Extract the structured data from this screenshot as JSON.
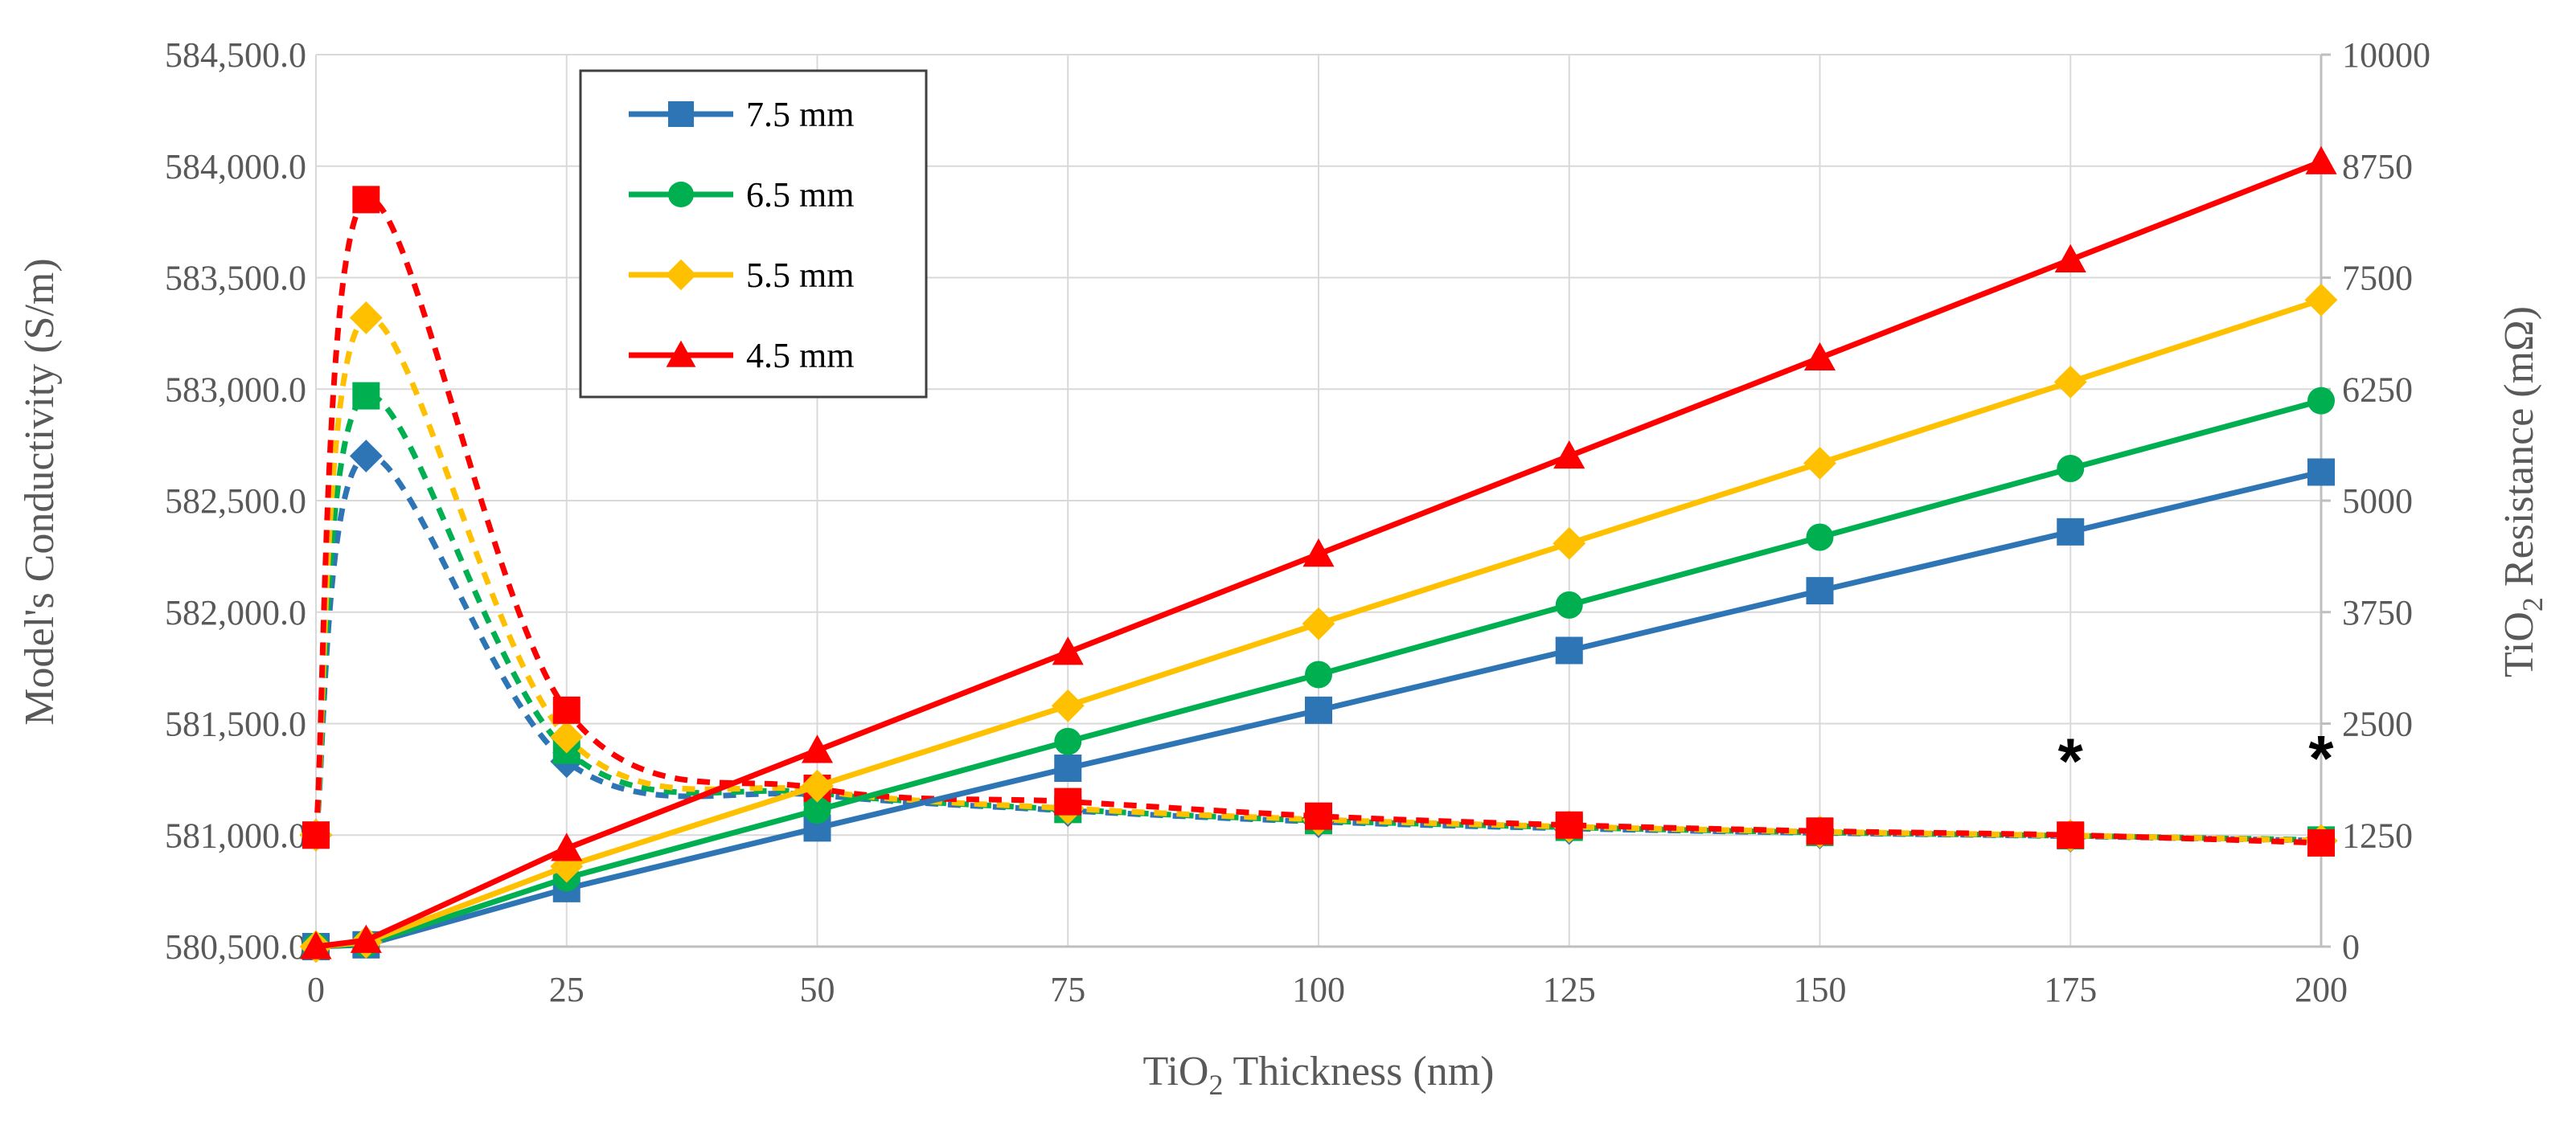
{
  "chart_data": {
    "type": "line",
    "xlabel": "TiO2 Thickness (nm)",
    "ylabel_left": "Model's Conductivity (S/m)",
    "ylabel_right": "TiO2 Resistance (mΩ)",
    "x_ticks": [
      "0",
      "25",
      "50",
      "75",
      "100",
      "125",
      "150",
      "175",
      "200"
    ],
    "y_left_ticks": [
      "580,500.0",
      "581,000.0",
      "581,500.0",
      "582,000.0",
      "582,500.0",
      "583,000.0",
      "583,500.0",
      "584,000.0",
      "584,500.0"
    ],
    "y_right_ticks": [
      "0",
      "1250",
      "2500",
      "3750",
      "5000",
      "6250",
      "7500",
      "8750",
      "10000"
    ],
    "xlim": [
      0,
      200
    ],
    "ylim_left": [
      580500,
      584500
    ],
    "ylim_right": [
      0,
      10000
    ],
    "grid": true,
    "legend_position": "top-left",
    "legend": [
      "7.5 mm",
      "6.5 mm",
      "5.5 mm",
      "4.5 mm"
    ],
    "conductivity_series_right_axis": [
      {
        "name": "7.5 mm",
        "color": "#2E75B6",
        "marker": "diamond",
        "x": [
          0,
          5,
          25,
          50,
          75,
          100,
          125,
          150,
          175,
          200
        ],
        "values": [
          581000,
          582700,
          581330,
          581180,
          581110,
          581060,
          581030,
          581010,
          580995,
          580975
        ]
      },
      {
        "name": "6.5 mm",
        "color": "#00B050",
        "marker": "square",
        "x": [
          0,
          5,
          25,
          50,
          75,
          100,
          125,
          150,
          175,
          200
        ],
        "values": [
          581000,
          582970,
          581380,
          581190,
          581115,
          581065,
          581035,
          581012,
          580997,
          580978
        ]
      },
      {
        "name": "5.5 mm",
        "color": "#FFC000",
        "marker": "diamond",
        "x": [
          0,
          5,
          25,
          50,
          75,
          100,
          125,
          150,
          175,
          200
        ],
        "values": [
          581000,
          583320,
          581440,
          581200,
          581120,
          581070,
          581038,
          581015,
          580998,
          580975
        ]
      },
      {
        "name": "4.5 mm",
        "color": "#FF0000",
        "marker": "square",
        "x": [
          0,
          5,
          25,
          50,
          75,
          100,
          125,
          150,
          175,
          200
        ],
        "values": [
          581000,
          583850,
          581560,
          581210,
          581150,
          581085,
          581045,
          581018,
          581000,
          580965
        ]
      }
    ],
    "resistance_series": [
      {
        "name": "7.5 mm",
        "color": "#2E75B6",
        "marker": "square",
        "x": [
          0,
          5,
          25,
          50,
          75,
          100,
          125,
          150,
          175,
          200
        ],
        "values": [
          0,
          20,
          650,
          1330,
          2000,
          2650,
          3320,
          3990,
          4650,
          5320
        ]
      },
      {
        "name": "6.5 mm",
        "color": "#00B050",
        "marker": "circle",
        "x": [
          0,
          5,
          25,
          50,
          75,
          100,
          125,
          150,
          175,
          200
        ],
        "values": [
          0,
          30,
          770,
          1530,
          2300,
          3050,
          3830,
          4590,
          5360,
          6120
        ]
      },
      {
        "name": "5.5 mm",
        "color": "#FFC000",
        "marker": "diamond",
        "x": [
          0,
          5,
          25,
          50,
          75,
          100,
          125,
          150,
          175,
          200
        ],
        "values": [
          0,
          50,
          900,
          1800,
          2700,
          3620,
          4520,
          5420,
          6330,
          7250
        ]
      },
      {
        "name": "4.5 mm",
        "color": "#FF0000",
        "marker": "triangle",
        "x": [
          0,
          5,
          25,
          50,
          75,
          100,
          125,
          150,
          175,
          200
        ],
        "values": [
          0,
          70,
          1100,
          2200,
          3300,
          4400,
          5500,
          6600,
          7700,
          8800
        ]
      }
    ],
    "annotations": [
      {
        "text": "*",
        "x": 175,
        "resistance": 2050
      },
      {
        "text": "*",
        "x": 200,
        "resistance": 2080
      }
    ]
  }
}
